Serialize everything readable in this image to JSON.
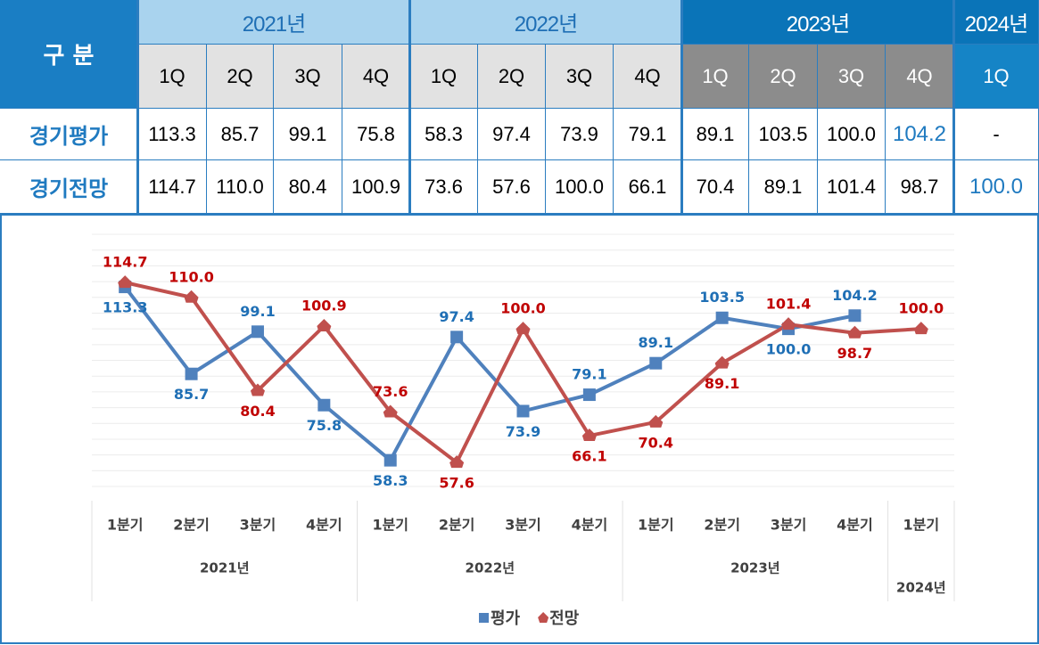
{
  "table": {
    "corner": "구 분",
    "years": [
      {
        "label": "2021년",
        "quarters": [
          "1Q",
          "2Q",
          "3Q",
          "4Q"
        ]
      },
      {
        "label": "2022년",
        "quarters": [
          "1Q",
          "2Q",
          "3Q",
          "4Q"
        ]
      },
      {
        "label": "2023년",
        "quarters": [
          "1Q",
          "2Q",
          "3Q",
          "4Q"
        ]
      },
      {
        "label": "2024년",
        "quarters": [
          "1Q"
        ]
      }
    ],
    "rows": [
      {
        "label": "경기평가",
        "values": [
          "113.3",
          "85.7",
          "99.1",
          "75.8",
          "58.3",
          "97.4",
          "73.9",
          "79.1",
          "89.1",
          "103.5",
          "100.0",
          "104.2",
          "-"
        ]
      },
      {
        "label": "경기전망",
        "values": [
          "114.7",
          "110.0",
          "80.4",
          "100.9",
          "73.6",
          "57.6",
          "100.0",
          "66.1",
          "70.4",
          "89.1",
          "101.4",
          "98.7",
          "100.0"
        ]
      }
    ]
  },
  "chart_data": {
    "type": "line",
    "groups": [
      {
        "label": "2021년",
        "categories": [
          "1분기",
          "2분기",
          "3분기",
          "4분기"
        ]
      },
      {
        "label": "2022년",
        "categories": [
          "1분기",
          "2분기",
          "3분기",
          "4분기"
        ]
      },
      {
        "label": "2023년",
        "categories": [
          "1분기",
          "2분기",
          "3분기",
          "4분기"
        ]
      },
      {
        "label": "2024년",
        "categories": [
          "1분기"
        ]
      }
    ],
    "series": [
      {
        "name": "평가",
        "color": "#4f81bd",
        "label_color": "#1f6fb5",
        "marker": "square",
        "values": [
          113.3,
          85.7,
          99.1,
          75.8,
          58.3,
          97.4,
          73.9,
          79.1,
          89.1,
          103.5,
          100.0,
          104.2,
          null
        ],
        "value_labels": [
          "113.3",
          "85.7",
          "99.1",
          "75.8",
          "58.3",
          "97.4",
          "73.9",
          "79.1",
          "89.1",
          "103.5",
          "100.0",
          "104.2",
          null
        ]
      },
      {
        "name": "전망",
        "color": "#c0504d",
        "label_color": "#c00000",
        "marker": "triangle",
        "values": [
          114.7,
          110.0,
          80.4,
          100.9,
          73.6,
          57.6,
          100.0,
          66.1,
          70.4,
          89.1,
          101.4,
          98.7,
          100.0
        ],
        "value_labels": [
          "114.7",
          "110.0",
          "80.4",
          "100.9",
          "73.6",
          "57.6",
          "100.0",
          "66.1",
          "70.4",
          "89.1",
          "101.4",
          "98.7",
          "100.0"
        ]
      }
    ],
    "ylim": [
      50,
      130
    ],
    "yticks": [
      50,
      55,
      60,
      65,
      70,
      75,
      80,
      85,
      90,
      95,
      100,
      105,
      110,
      115,
      120,
      125,
      130
    ],
    "grid": true,
    "legend": "bottom"
  }
}
